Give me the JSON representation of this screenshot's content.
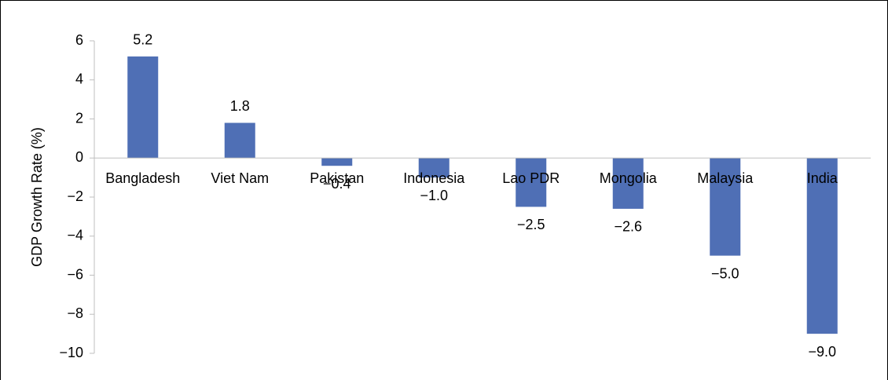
{
  "chart_data": {
    "type": "bar",
    "y_label": "GDP Growth Rate (%)",
    "categories": [
      "Bangladesh",
      "Viet Nam",
      "Pakistan",
      "Indonesia",
      "Lao PDR",
      "Mongolia",
      "Malaysia",
      "India"
    ],
    "values": [
      5.2,
      1.8,
      -0.4,
      -1.0,
      -2.5,
      -2.6,
      -5.0,
      -9.0
    ],
    "value_labels": [
      "5.2",
      "1.8",
      "−0.4",
      "−1.0",
      "−2.5",
      "−2.6",
      "−5.0",
      "−9.0"
    ],
    "color": "#4f6fb5",
    "ylim": [
      -10,
      6
    ],
    "yticks": [
      6,
      4,
      2,
      0,
      {
        "value": -2,
        "label": "−2"
      },
      {
        "value": -4,
        "label": "−4"
      },
      {
        "value": -6,
        "label": "−6"
      },
      {
        "value": -8,
        "label": "−8"
      },
      {
        "value": -10,
        "label": "−10"
      }
    ]
  }
}
